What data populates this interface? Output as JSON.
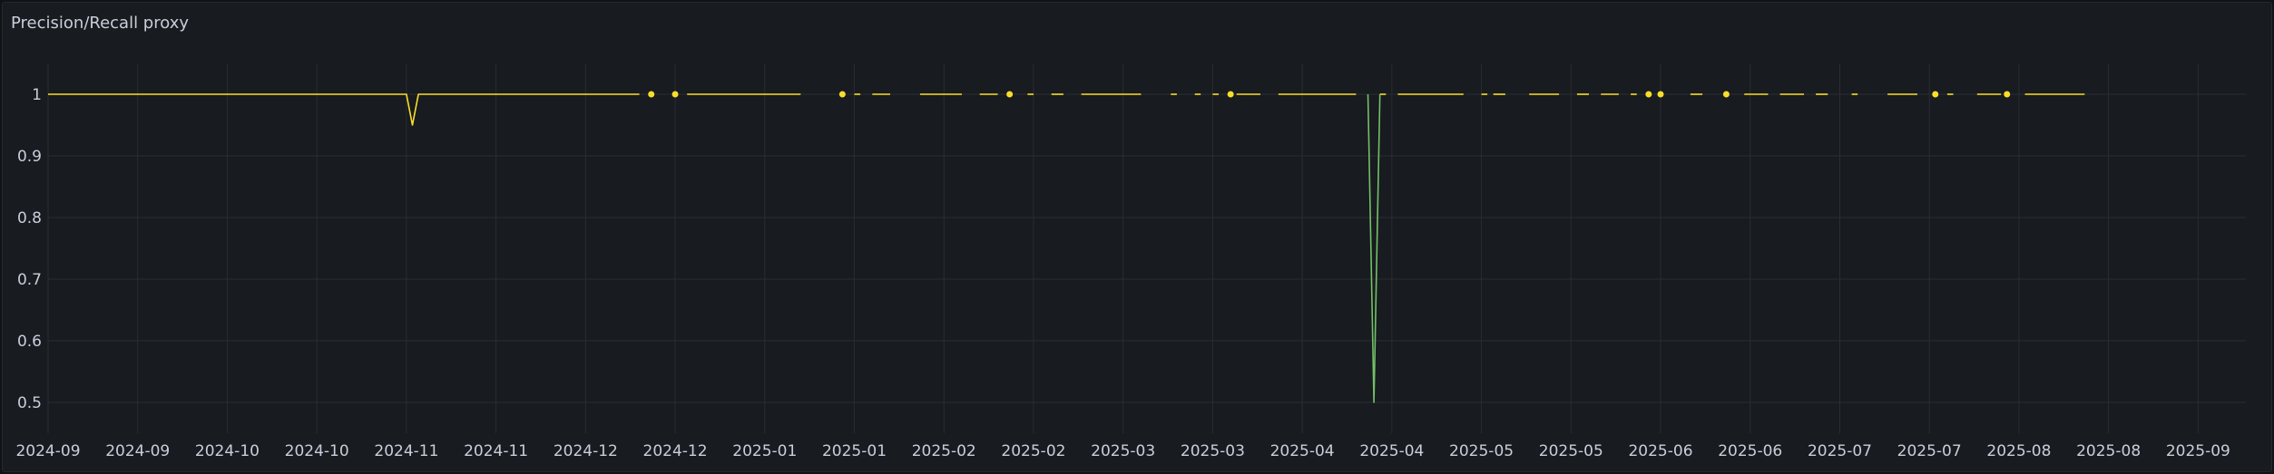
{
  "panel": {
    "title": "Precision/Recall proxy"
  },
  "colors": {
    "background": "#181b1f",
    "grid": "#2a2d33",
    "tick_text": "#ccccdc",
    "series_main": "#fade2a",
    "series_secondary": "#73bf69"
  },
  "chart_data": {
    "type": "line",
    "title": "Precision/Recall proxy",
    "xlabel": "",
    "ylabel": "",
    "ylim": [
      0.45,
      1.05
    ],
    "grid": true,
    "y_ticks": [
      "1",
      "0.9",
      "0.8",
      "0.7",
      "0.6",
      "0.5"
    ],
    "y_tick_values": [
      1,
      0.9,
      0.8,
      0.7,
      0.6,
      0.5
    ],
    "x_range": [
      "2024-09-01",
      "2025-09-04"
    ],
    "x_ticks": [
      {
        "label": "2024-09",
        "date": "2024-09-01"
      },
      {
        "label": "2024-09",
        "date": "2024-09-16"
      },
      {
        "label": "2024-10",
        "date": "2024-10-01"
      },
      {
        "label": "2024-10",
        "date": "2024-10-16"
      },
      {
        "label": "2024-11",
        "date": "2024-10-31"
      },
      {
        "label": "2024-11",
        "date": "2024-11-15"
      },
      {
        "label": "2024-12",
        "date": "2024-11-30"
      },
      {
        "label": "2024-12",
        "date": "2024-12-15"
      },
      {
        "label": "2025-01",
        "date": "2024-12-30"
      },
      {
        "label": "2025-01",
        "date": "2025-01-14"
      },
      {
        "label": "2025-02",
        "date": "2025-01-29"
      },
      {
        "label": "2025-02",
        "date": "2025-02-13"
      },
      {
        "label": "2025-03",
        "date": "2025-02-28"
      },
      {
        "label": "2025-03",
        "date": "2025-03-15"
      },
      {
        "label": "2025-04",
        "date": "2025-03-30"
      },
      {
        "label": "2025-04",
        "date": "2025-04-14"
      },
      {
        "label": "2025-05",
        "date": "2025-04-29"
      },
      {
        "label": "2025-05",
        "date": "2025-05-14"
      },
      {
        "label": "2025-06",
        "date": "2025-05-29"
      },
      {
        "label": "2025-06",
        "date": "2025-06-13"
      },
      {
        "label": "2025-07",
        "date": "2025-06-28"
      },
      {
        "label": "2025-07",
        "date": "2025-07-13"
      },
      {
        "label": "2025-08",
        "date": "2025-07-28"
      },
      {
        "label": "2025-08",
        "date": "2025-08-12"
      },
      {
        "label": "2025-09",
        "date": "2025-08-27"
      }
    ],
    "series": [
      {
        "color": "#fade2a",
        "segments": [
          [
            [
              "2024-09-01",
              1
            ],
            [
              "2024-10-31",
              1
            ],
            [
              "2024-11-01",
              0.95
            ],
            [
              "2024-11-02",
              1
            ],
            [
              "2024-12-09",
              1
            ]
          ],
          [
            [
              "2024-12-11",
              1
            ]
          ],
          [
            [
              "2024-12-15",
              1
            ]
          ],
          [
            [
              "2024-12-17",
              1
            ],
            [
              "2025-01-05",
              1
            ]
          ],
          [
            [
              "2025-01-12",
              1
            ]
          ],
          [
            [
              "2025-01-14",
              1
            ],
            [
              "2025-01-15",
              1
            ]
          ],
          [
            [
              "2025-01-17",
              1
            ],
            [
              "2025-01-20",
              1
            ]
          ],
          [
            [
              "2025-01-25",
              1
            ],
            [
              "2025-02-01",
              1
            ]
          ],
          [
            [
              "2025-02-04",
              1
            ],
            [
              "2025-02-07",
              1
            ]
          ],
          [
            [
              "2025-02-09",
              1
            ]
          ],
          [
            [
              "2025-02-12",
              1
            ],
            [
              "2025-02-13",
              1
            ]
          ],
          [
            [
              "2025-02-16",
              1
            ],
            [
              "2025-02-18",
              1
            ]
          ],
          [
            [
              "2025-02-21",
              1
            ],
            [
              "2025-03-03",
              1
            ]
          ],
          [
            [
              "2025-03-08",
              1
            ],
            [
              "2025-03-09",
              1
            ]
          ],
          [
            [
              "2025-03-12",
              1
            ],
            [
              "2025-03-13",
              1
            ]
          ],
          [
            [
              "2025-03-15",
              1
            ],
            [
              "2025-03-16",
              1
            ]
          ],
          [
            [
              "2025-03-18",
              1
            ]
          ],
          [
            [
              "2025-03-19",
              1
            ],
            [
              "2025-03-23",
              1
            ]
          ],
          [
            [
              "2025-03-26",
              1
            ],
            [
              "2025-04-08",
              1
            ]
          ],
          [
            [
              "2025-04-12",
              1
            ],
            [
              "2025-04-13",
              1
            ]
          ],
          [
            [
              "2025-04-15",
              1
            ],
            [
              "2025-04-26",
              1
            ]
          ],
          [
            [
              "2025-04-29",
              1
            ],
            [
              "2025-04-30",
              1
            ]
          ],
          [
            [
              "2025-05-01",
              1
            ],
            [
              "2025-05-02",
              1
            ],
            [
              "2025-05-03",
              1
            ]
          ],
          [
            [
              "2025-05-07",
              1
            ],
            [
              "2025-05-12",
              1
            ]
          ],
          [
            [
              "2025-05-15",
              1
            ],
            [
              "2025-05-17",
              1
            ]
          ],
          [
            [
              "2025-05-19",
              1
            ],
            [
              "2025-05-22",
              1
            ]
          ],
          [
            [
              "2025-05-24",
              1
            ],
            [
              "2025-05-25",
              1
            ]
          ],
          [
            [
              "2025-05-27",
              1
            ]
          ],
          [
            [
              "2025-05-29",
              1
            ]
          ],
          [
            [
              "2025-06-03",
              1
            ],
            [
              "2025-06-05",
              1
            ]
          ],
          [
            [
              "2025-06-09",
              1
            ]
          ],
          [
            [
              "2025-06-12",
              1
            ],
            [
              "2025-06-16",
              1
            ]
          ],
          [
            [
              "2025-06-18",
              1
            ],
            [
              "2025-06-22",
              1
            ]
          ],
          [
            [
              "2025-06-24",
              1
            ],
            [
              "2025-06-26",
              1
            ]
          ],
          [
            [
              "2025-06-30",
              1
            ],
            [
              "2025-07-01",
              1
            ]
          ],
          [
            [
              "2025-07-06",
              1
            ],
            [
              "2025-07-11",
              1
            ]
          ],
          [
            [
              "2025-07-14",
              1
            ]
          ],
          [
            [
              "2025-07-16",
              1
            ],
            [
              "2025-07-17",
              1
            ]
          ],
          [
            [
              "2025-07-21",
              1
            ],
            [
              "2025-07-25",
              1
            ]
          ],
          [
            [
              "2025-07-26",
              1
            ]
          ],
          [
            [
              "2025-07-29",
              1
            ],
            [
              "2025-08-08",
              1
            ]
          ]
        ]
      },
      {
        "color": "#73bf69",
        "segments": [
          [
            [
              "2025-04-10",
              1
            ],
            [
              "2025-04-11",
              0.5
            ],
            [
              "2025-04-12",
              1
            ]
          ]
        ]
      }
    ]
  }
}
